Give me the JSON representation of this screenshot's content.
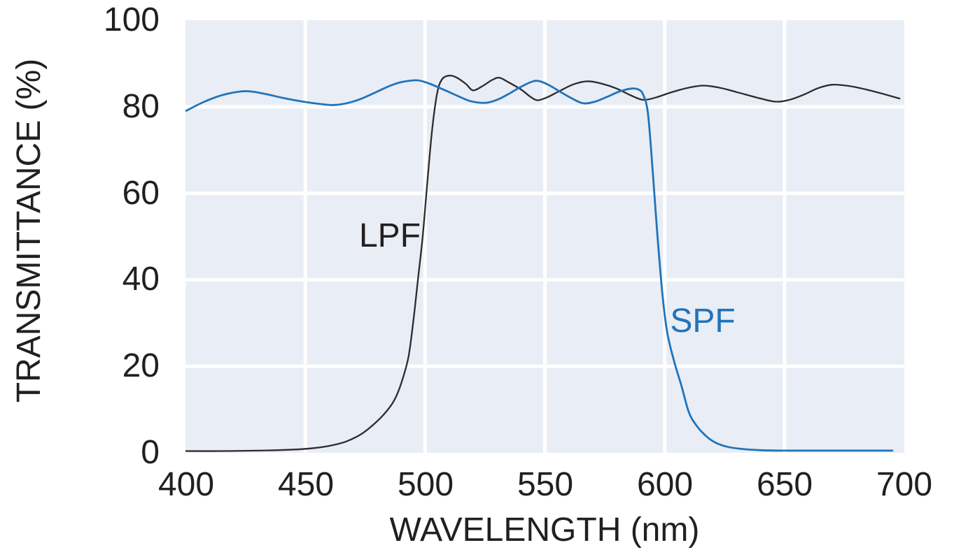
{
  "chart_data": {
    "type": "line",
    "title": "",
    "xlabel": "WAVELENGTH (nm)",
    "ylabel": "TRANSMITTANCE (%)",
    "xlim": [
      400,
      700
    ],
    "ylim": [
      0,
      100
    ],
    "xticks": [
      400,
      450,
      500,
      550,
      600,
      650,
      700
    ],
    "yticks": [
      100,
      80,
      60,
      40,
      20,
      0
    ],
    "xtick_labels": [
      "400",
      "450",
      "500",
      "550",
      "600",
      "650",
      "700"
    ],
    "ytick_labels": [
      "100",
      "80",
      "60",
      "40",
      "20",
      "0"
    ],
    "grid": true,
    "legend_position": "inline-annotations",
    "colors": {
      "plot_background": "#e9edf5",
      "gridline": "#ffffff",
      "lpf_line": "#2e2b2c",
      "spf_line": "#2074bb",
      "text": "#231f20"
    },
    "series": [
      {
        "name": "LPF",
        "color": "#2e2b2c",
        "x": [
          400,
          415,
          430,
          443,
          452,
          460,
          467,
          473,
          478,
          483,
          487,
          490,
          493,
          495,
          497,
          499,
          501,
          503,
          505,
          507,
          510,
          513,
          517,
          520,
          524,
          528,
          531,
          535,
          540,
          544,
          547,
          551,
          556,
          562,
          568,
          574,
          580,
          586,
          591,
          596,
          602,
          609,
          616,
          623,
          630,
          638,
          646,
          652,
          658,
          664,
          670,
          677,
          684,
          691,
          698
        ],
        "y": [
          0.4,
          0.4,
          0.5,
          0.7,
          1.0,
          1.6,
          2.6,
          4.2,
          6.3,
          9,
          12,
          16,
          22,
          30,
          40,
          50,
          63,
          75,
          83,
          86.3,
          87.2,
          86.8,
          85.3,
          83.8,
          84.8,
          86.2,
          86.7,
          85.6,
          84.0,
          82.3,
          81.5,
          82.2,
          83.6,
          85.2,
          85.9,
          85.3,
          84.2,
          82.6,
          81.6,
          82.1,
          83.2,
          84.3,
          84.9,
          84.4,
          83.4,
          82.2,
          81.2,
          81.6,
          82.8,
          84.3,
          85.1,
          84.8,
          84.0,
          83.0,
          81.9
        ]
      },
      {
        "name": "SPF",
        "color": "#2074bb",
        "x": [
          400,
          408,
          416,
          425,
          433,
          441,
          450,
          457,
          462,
          468,
          474,
          480,
          486,
          491,
          497,
          502,
          508,
          514,
          519,
          525,
          530,
          535,
          540,
          546,
          551,
          556,
          561,
          566,
          571,
          576,
          581,
          586,
          589,
          591,
          593,
          595,
          597,
          599,
          601,
          604,
          607,
          610,
          613,
          617,
          621,
          626,
          632,
          640,
          650,
          662,
          676,
          695
        ],
        "y": [
          79,
          81.2,
          82.8,
          83.6,
          83.0,
          82.0,
          81.1,
          80.6,
          80.4,
          80.9,
          82.0,
          83.5,
          85.0,
          85.8,
          86.1,
          85.3,
          83.9,
          82.4,
          81.3,
          80.9,
          81.6,
          83.0,
          84.6,
          86.0,
          85.2,
          83.6,
          82.0,
          80.8,
          81.2,
          82.3,
          83.5,
          84.2,
          84.0,
          82.8,
          78.5,
          65,
          50,
          37,
          28,
          21,
          15.5,
          9.5,
          6.5,
          4.0,
          2.4,
          1.4,
          0.9,
          0.6,
          0.5,
          0.5,
          0.5,
          0.5
        ]
      }
    ]
  }
}
